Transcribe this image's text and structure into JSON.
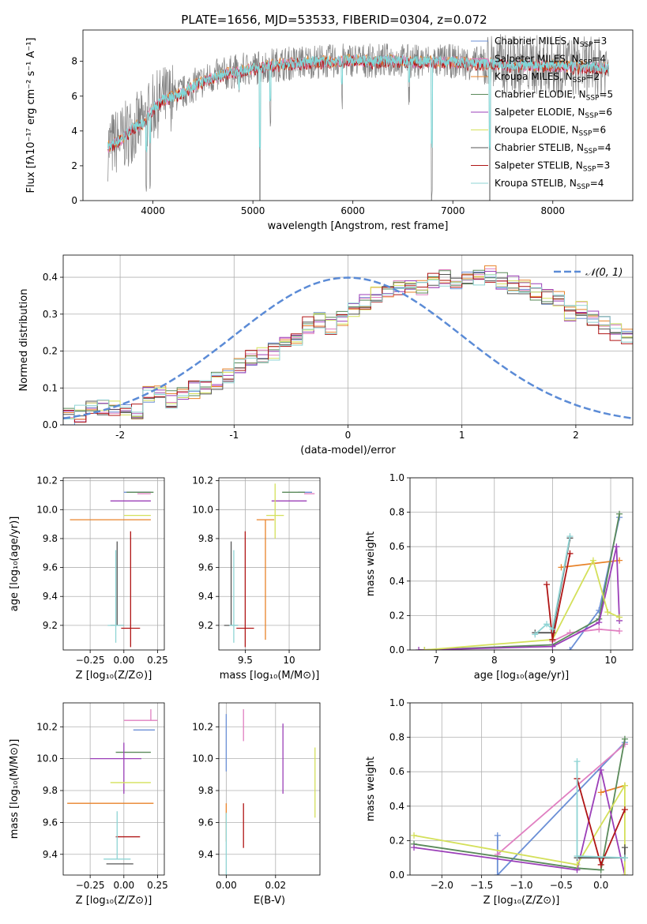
{
  "chart_data": [
    {
      "id": "spectrum",
      "type": "line",
      "title": "PLATE=1656, MJD=53533, FIBERID=0304, z=0.072",
      "xlabel": "wavelength [Angstrom, rest frame]",
      "ylabel": "Flux [fλ10⁻¹⁷ erg cm⁻² s⁻¹ A⁻¹]",
      "xlim": [
        3300,
        8800
      ],
      "ylim": [
        0,
        9.8
      ],
      "xticks": [
        4000,
        5000,
        6000,
        7000,
        8000
      ],
      "yticks": [
        0,
        2,
        4,
        6,
        8
      ],
      "grid": false,
      "legend_position": "top-right",
      "legend": [
        {
          "name": "Chabrier MILES, N_SSP=3",
          "label": "Chabrier MILES, N",
          "sub": "SSP",
          "post": "=3",
          "color": "#6b8fd6"
        },
        {
          "name": "Salpeter MILES, N_SSP=4",
          "label": "Salpeter MILES, N",
          "sub": "SSP",
          "post": "=4",
          "color": "#e07fc1"
        },
        {
          "name": "Kroupa MILES, N_SSP=2",
          "label": "Kroupa MILES, N",
          "sub": "SSP",
          "post": "=2",
          "color": "#e8832a"
        },
        {
          "name": "Chabrier ELODIE, N_SSP=5",
          "label": "Chabrier ELODIE, N",
          "sub": "SSP",
          "post": "=5",
          "color": "#5a8a5a"
        },
        {
          "name": "Salpeter ELODIE, N_SSP=6",
          "label": "Salpeter ELODIE, N",
          "sub": "SSP",
          "post": "=6",
          "color": "#9b3fb8"
        },
        {
          "name": "Kroupa ELODIE, N_SSP=6",
          "label": "Kroupa ELODIE, N",
          "sub": "SSP",
          "post": "=6",
          "color": "#d4e05a"
        },
        {
          "name": "Chabrier STELIB, N_SSP=4",
          "label": "Chabrier STELIB, N",
          "sub": "SSP",
          "post": "=4",
          "color": "#555555"
        },
        {
          "name": "Salpeter STELIB, N_SSP=3",
          "label": "Salpeter STELIB, N",
          "sub": "SSP",
          "post": "=3",
          "color": "#b01515"
        },
        {
          "name": "Kroupa STELIB, N_SSP=4",
          "label": "Kroupa STELIB, N",
          "sub": "SSP",
          "post": "=4",
          "color": "#8fd4d4"
        }
      ],
      "data_color": "#808080",
      "model_color": "#7fd8d8",
      "continuum_wavelength": [
        3550,
        3700,
        3800,
        3900,
        4000,
        4100,
        4200,
        4300,
        4400,
        4600,
        4800,
        5000,
        5200,
        5400,
        5600,
        5800,
        6000,
        6200,
        6400,
        6600,
        6800,
        7000,
        7200,
        7400,
        7600,
        7800,
        8000,
        8200,
        8400,
        8600
      ],
      "continuum_flux": [
        3.1,
        3.6,
        4.2,
        4.4,
        5.3,
        5.8,
        6.0,
        6.2,
        6.6,
        7.1,
        7.4,
        7.6,
        7.8,
        7.9,
        8.0,
        8.0,
        8.1,
        8.0,
        8.1,
        8.0,
        8.0,
        8.0,
        7.9,
        7.9,
        7.8,
        7.8,
        7.8,
        7.7,
        7.7,
        7.6
      ]
    },
    {
      "id": "residuals",
      "type": "histogram",
      "xlabel": "(data-model)/error",
      "ylabel": "Normed distribution",
      "xlim": [
        -2.5,
        2.5
      ],
      "ylim": [
        0,
        0.46
      ],
      "xticks": [
        -2,
        -1,
        0,
        1,
        2
      ],
      "yticks": [
        0.0,
        0.1,
        0.2,
        0.3,
        0.4
      ],
      "grid": true,
      "legend_position": "top-right",
      "legend": [
        {
          "name": "𝒩(0, 1)",
          "color": "#5b8bd6"
        }
      ],
      "bin_edges_start": -2.5,
      "bin_width": 0.1,
      "base_counts": [
        0.02,
        0.03,
        0.04,
        0.045,
        0.04,
        0.035,
        0.04,
        0.08,
        0.085,
        0.07,
        0.08,
        0.095,
        0.1,
        0.12,
        0.13,
        0.16,
        0.18,
        0.19,
        0.2,
        0.22,
        0.24,
        0.27,
        0.28,
        0.27,
        0.29,
        0.31,
        0.33,
        0.35,
        0.36,
        0.37,
        0.38,
        0.37,
        0.39,
        0.4,
        0.38,
        0.39,
        0.4,
        0.41,
        0.39,
        0.38,
        0.37,
        0.36,
        0.35,
        0.34,
        0.3,
        0.31,
        0.29,
        0.27,
        0.25,
        0.24,
        0.23,
        0.21,
        0.2,
        0.19,
        0.17,
        0.15,
        0.13,
        0.12,
        0.11,
        0.1,
        0.09,
        0.085,
        0.08,
        0.07,
        0.06,
        0.05,
        0.045,
        0.04,
        0.035,
        0.03
      ]
    },
    {
      "id": "z-vs-age",
      "type": "errorbar",
      "xlabel": "Z [log₁₀(Z/Z⊙)]",
      "ylabel": "age  [log₁₀(age/yr)]",
      "xlim": [
        -0.45,
        0.3
      ],
      "ylim": [
        9.03,
        10.22
      ],
      "xticks": [
        -0.25,
        0.0,
        0.25
      ],
      "xticklabels": [
        "−0.25",
        "0.00",
        "0.25"
      ],
      "yticks": [
        9.2,
        9.4,
        9.6,
        9.8,
        10.0,
        10.2
      ],
      "grid": true,
      "points": [
        {
          "x": 0.1,
          "xerr": [
            0.1,
            0.1
          ],
          "y": 10.12,
          "yerr": [
            0.0,
            0.0
          ],
          "color": "#6b8fd6"
        },
        {
          "x": 0.15,
          "xerr": [
            0.05,
            0.05
          ],
          "y": 10.11,
          "yerr": [
            0.0,
            0.0
          ],
          "color": "#e07fc1"
        },
        {
          "x": -0.1,
          "xerr": [
            0.3,
            0.3
          ],
          "y": 9.93,
          "yerr": [
            0.0,
            0.0
          ],
          "color": "#e8832a"
        },
        {
          "x": 0.12,
          "xerr": [
            0.1,
            0.1
          ],
          "y": 10.12,
          "yerr": [
            0.0,
            0.0
          ],
          "color": "#5a8a5a"
        },
        {
          "x": 0.05,
          "xerr": [
            0.15,
            0.15
          ],
          "y": 10.06,
          "yerr": [
            0.0,
            0.0
          ],
          "color": "#9b3fb8"
        },
        {
          "x": 0.1,
          "xerr": [
            0.1,
            0.1
          ],
          "y": 9.96,
          "yerr": [
            0.0,
            0.0
          ],
          "color": "#d4e05a"
        },
        {
          "x": -0.05,
          "xerr": [
            0.05,
            0.05
          ],
          "y": 9.2,
          "yerr": [
            0.0,
            0.58
          ],
          "color": "#555555"
        },
        {
          "x": 0.05,
          "xerr": [
            0.07,
            0.07
          ],
          "y": 9.18,
          "yerr": [
            0.13,
            0.67
          ],
          "color": "#b01515"
        },
        {
          "x": -0.06,
          "xerr": [
            0.06,
            0.06
          ],
          "y": 9.2,
          "yerr": [
            0.12,
            0.52
          ],
          "color": "#8fd4d4"
        }
      ]
    },
    {
      "id": "mass-vs-age",
      "type": "errorbar",
      "xlabel": "mass [log₁₀(M/M⊙)]",
      "ylabel": "",
      "xlim": [
        9.2,
        10.35
      ],
      "ylim": [
        9.03,
        10.22
      ],
      "xticks": [
        9.5,
        10.0
      ],
      "yticks": [
        9.2,
        9.4,
        9.6,
        9.8,
        10.0,
        10.2
      ],
      "grid": true,
      "points": [
        {
          "x": 10.18,
          "xerr": [
            0.08,
            0.08
          ],
          "y": 10.12,
          "yerr": [
            0.0,
            0.0
          ],
          "color": "#6b8fd6"
        },
        {
          "x": 10.23,
          "xerr": [
            0.06,
            0.06
          ],
          "y": 10.11,
          "yerr": [
            0.0,
            0.0
          ],
          "color": "#e07fc1"
        },
        {
          "x": 9.73,
          "xerr": [
            0.1,
            0.1
          ],
          "y": 9.93,
          "yerr": [
            0.83,
            0.0
          ],
          "color": "#e8832a"
        },
        {
          "x": 10.05,
          "xerr": [
            0.13,
            0.13
          ],
          "y": 10.12,
          "yerr": [
            0.0,
            0.0
          ],
          "color": "#5a8a5a"
        },
        {
          "x": 10.0,
          "xerr": [
            0.2,
            0.2
          ],
          "y": 10.06,
          "yerr": [
            0.0,
            0.0
          ],
          "color": "#9b3fb8"
        },
        {
          "x": 9.84,
          "xerr": [
            0.1,
            0.1
          ],
          "y": 9.96,
          "yerr": [
            0.16,
            0.22
          ],
          "color": "#d4e05a"
        },
        {
          "x": 9.34,
          "xerr": [
            0.08,
            0.08
          ],
          "y": 9.2,
          "yerr": [
            0.0,
            0.58
          ],
          "color": "#555555"
        },
        {
          "x": 9.5,
          "xerr": [
            0.1,
            0.1
          ],
          "y": 9.18,
          "yerr": [
            0.13,
            0.67
          ],
          "color": "#b01515"
        },
        {
          "x": 9.37,
          "xerr": [
            0.05,
            0.05
          ],
          "y": 9.2,
          "yerr": [
            0.12,
            0.52
          ],
          "color": "#8fd4d4"
        }
      ]
    },
    {
      "id": "weight-vs-age",
      "type": "line",
      "xlabel": "age  [log₁₀(age/yr)]",
      "ylabel": "mass weight",
      "xlim": [
        6.55,
        10.38
      ],
      "ylim": [
        0,
        1.0
      ],
      "xticks": [
        7,
        8,
        9,
        10
      ],
      "yticks": [
        0.0,
        0.2,
        0.4,
        0.6,
        0.8,
        1.0
      ],
      "grid": true,
      "series": [
        {
          "color": "#6b8fd6",
          "x": [
            9.3,
            9.8,
            10.15
          ],
          "y": [
            0.0,
            0.23,
            0.77
          ]
        },
        {
          "color": "#e07fc1",
          "x": [
            9.0,
            9.3,
            9.8,
            10.15
          ],
          "y": [
            0.05,
            0.1,
            0.12,
            0.11
          ]
        },
        {
          "color": "#e8832a",
          "x": [
            9.15,
            10.15
          ],
          "y": [
            0.48,
            0.52
          ]
        },
        {
          "color": "#5a8a5a",
          "x": [
            6.8,
            9.0,
            9.8,
            10.15
          ],
          "y": [
            0.0,
            0.03,
            0.18,
            0.79
          ]
        },
        {
          "color": "#9b3fb8",
          "x": [
            6.7,
            9.0,
            9.8,
            10.1,
            10.15
          ],
          "y": [
            0.0,
            0.02,
            0.16,
            0.6,
            0.17
          ]
        },
        {
          "color": "#d4e05a",
          "x": [
            6.8,
            9.0,
            9.7,
            9.95,
            10.15
          ],
          "y": [
            0.0,
            0.06,
            0.52,
            0.22,
            0.19
          ]
        },
        {
          "color": "#555555",
          "x": [
            8.7,
            9.0,
            9.3
          ],
          "y": [
            0.1,
            0.1,
            0.65
          ]
        },
        {
          "color": "#b01515",
          "x": [
            8.9,
            9.0,
            9.3
          ],
          "y": [
            0.38,
            0.06,
            0.56
          ]
        },
        {
          "color": "#8fd4d4",
          "x": [
            8.7,
            8.9,
            9.0,
            9.3
          ],
          "y": [
            0.09,
            0.15,
            0.12,
            0.66
          ]
        }
      ]
    },
    {
      "id": "z-vs-mass",
      "type": "errorbar",
      "xlabel": "Z [log₁₀(Z/Z⊙)]",
      "ylabel": "mass [log₁₀(M/M⊙)]",
      "xlim": [
        -0.45,
        0.3
      ],
      "ylim": [
        9.27,
        10.35
      ],
      "xticks": [
        -0.25,
        0.0,
        0.25
      ],
      "xticklabels": [
        "−0.25",
        "0.00",
        "0.25"
      ],
      "yticks": [
        9.4,
        9.6,
        9.8,
        10.0,
        10.2
      ],
      "grid": true,
      "points": [
        {
          "x": 0.15,
          "xerr": [
            0.08,
            0.08
          ],
          "y": 10.18,
          "yerr": [
            0.0,
            0.0
          ],
          "color": "#6b8fd6"
        },
        {
          "x": 0.2,
          "xerr": [
            0.2,
            0.05
          ],
          "y": 10.24,
          "yerr": [
            0.0,
            0.07
          ],
          "color": "#e07fc1"
        },
        {
          "x": -0.1,
          "xerr": [
            0.32,
            0.32
          ],
          "y": 9.72,
          "yerr": [
            0.0,
            0.0
          ],
          "color": "#e8832a"
        },
        {
          "x": 0.07,
          "xerr": [
            0.13,
            0.13
          ],
          "y": 10.04,
          "yerr": [
            0.0,
            0.0
          ],
          "color": "#5a8a5a"
        },
        {
          "x": 0.0,
          "xerr": [
            0.25,
            0.13
          ],
          "y": 10.0,
          "yerr": [
            0.22,
            0.1
          ],
          "color": "#9b3fb8"
        },
        {
          "x": 0.05,
          "xerr": [
            0.15,
            0.15
          ],
          "y": 9.85,
          "yerr": [
            0.0,
            0.0
          ],
          "color": "#d4e05a"
        },
        {
          "x": -0.03,
          "xerr": [
            0.1,
            0.1
          ],
          "y": 9.34,
          "yerr": [
            0.0,
            0.0
          ],
          "color": "#555555"
        },
        {
          "x": 0.03,
          "xerr": [
            0.09,
            0.09
          ],
          "y": 9.51,
          "yerr": [
            0.0,
            0.0
          ],
          "color": "#b01515"
        },
        {
          "x": -0.05,
          "xerr": [
            0.1,
            0.1
          ],
          "y": 9.37,
          "yerr": [
            0.0,
            0.3
          ],
          "color": "#8fd4d4"
        }
      ]
    },
    {
      "id": "ebv-vs-mass",
      "type": "errorbar",
      "xlabel": "E(B-V)",
      "ylabel": "",
      "xlim": [
        -0.003,
        0.038
      ],
      "ylim": [
        9.27,
        10.35
      ],
      "xticks": [
        0.0,
        0.02
      ],
      "xticklabels": [
        "0.00",
        "0.02"
      ],
      "yticks": [
        9.4,
        9.6,
        9.8,
        10.0,
        10.2
      ],
      "grid": true,
      "points": [
        {
          "x": 0.0,
          "xerr": [
            0,
            0
          ],
          "y": 10.1,
          "yerr": [
            0.18,
            0.18
          ],
          "color": "#6b8fd6"
        },
        {
          "x": 0.007,
          "xerr": [
            0,
            0
          ],
          "y": 10.21,
          "yerr": [
            0.1,
            0.1
          ],
          "color": "#e07fc1"
        },
        {
          "x": 0.0,
          "xerr": [
            0,
            0
          ],
          "y": 9.6,
          "yerr": [
            0.12,
            0.12
          ],
          "color": "#e8832a"
        },
        {
          "x": 0.023,
          "xerr": [
            0,
            0
          ],
          "y": 10.0,
          "yerr": [
            0.22,
            0.22
          ],
          "color": "#9b3fb8"
        },
        {
          "x": 0.036,
          "xerr": [
            0,
            0
          ],
          "y": 9.85,
          "yerr": [
            0.22,
            0.22
          ],
          "color": "#d4e05a"
        },
        {
          "x": 0.007,
          "xerr": [
            0,
            0
          ],
          "y": 9.58,
          "yerr": [
            0.14,
            0.14
          ],
          "color": "#b01515"
        },
        {
          "x": 0.0,
          "xerr": [
            0,
            0
          ],
          "y": 9.46,
          "yerr": [
            0.2,
            0.2
          ],
          "color": "#8fd4d4"
        }
      ]
    },
    {
      "id": "weight-vs-z",
      "type": "line",
      "xlabel": "Z [log₁₀(Z/Z⊙)]",
      "ylabel": "mass weight",
      "xlim": [
        -2.4,
        0.4
      ],
      "ylim": [
        0,
        1.0
      ],
      "xticks": [
        -2.0,
        -1.5,
        -1.0,
        -0.5,
        0.0
      ],
      "xticklabels": [
        "−2.0",
        "−1.5",
        "−1.0",
        "−0.5",
        "0.0"
      ],
      "yticks": [
        0.0,
        0.2,
        0.4,
        0.6,
        0.8,
        1.0
      ],
      "grid": true,
      "series": [
        {
          "color": "#6b8fd6",
          "x": [
            -1.3,
            -1.3,
            0.3
          ],
          "y": [
            0.23,
            0.0,
            0.77
          ]
        },
        {
          "color": "#e07fc1",
          "x": [
            -1.3,
            0.3
          ],
          "y": [
            0.12,
            0.76
          ]
        },
        {
          "color": "#e8832a",
          "x": [
            0.0,
            0.3
          ],
          "y": [
            0.48,
            0.52
          ]
        },
        {
          "color": "#5a8a5a",
          "x": [
            -2.35,
            -0.3,
            0.0,
            0.3
          ],
          "y": [
            0.18,
            0.04,
            0.03,
            0.79
          ]
        },
        {
          "color": "#9b3fb8",
          "x": [
            -2.35,
            -0.3,
            0.0,
            0.3
          ],
          "y": [
            0.16,
            0.03,
            0.61,
            0.0
          ]
        },
        {
          "color": "#d4e05a",
          "x": [
            -2.35,
            -0.3,
            0.3,
            0.3
          ],
          "y": [
            0.23,
            0.06,
            0.52,
            0.0
          ]
        },
        {
          "color": "#555555",
          "x": [
            -0.3,
            0.3,
            0.3
          ],
          "y": [
            0.1,
            0.1,
            0.16
          ]
        },
        {
          "color": "#b01515",
          "x": [
            -0.3,
            0.0,
            0.3
          ],
          "y": [
            0.56,
            0.06,
            0.38
          ]
        },
        {
          "color": "#8fd4d4",
          "x": [
            -0.3,
            -0.3,
            0.3
          ],
          "y": [
            0.66,
            0.11,
            0.1
          ]
        }
      ]
    }
  ]
}
